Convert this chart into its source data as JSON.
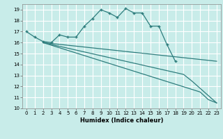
{
  "background_color": "#c8ece9",
  "grid_color": "#ffffff",
  "line_color": "#2e7d7d",
  "xlabel": "Humidex (Indice chaleur)",
  "ylim": [
    10,
    19.5
  ],
  "xlim": [
    -0.5,
    23.5
  ],
  "yticks": [
    10,
    11,
    12,
    13,
    14,
    15,
    16,
    17,
    18,
    19
  ],
  "xticks": [
    0,
    1,
    2,
    3,
    4,
    5,
    6,
    7,
    8,
    9,
    10,
    11,
    12,
    13,
    14,
    15,
    16,
    17,
    18,
    19,
    20,
    21,
    22,
    23
  ],
  "line1_x": [
    0,
    1,
    2,
    3,
    4,
    5,
    6,
    7,
    8,
    9,
    10,
    11,
    12,
    13,
    14,
    15,
    16,
    17,
    18
  ],
  "line1_y": [
    17.0,
    16.5,
    16.1,
    16.0,
    16.7,
    16.5,
    16.5,
    17.5,
    18.2,
    19.0,
    18.7,
    18.3,
    19.1,
    18.7,
    18.7,
    17.5,
    17.5,
    15.8,
    14.3
  ],
  "line2_x": [
    2,
    23
  ],
  "line2_y": [
    16.0,
    14.3
  ],
  "line3_x": [
    2,
    19,
    20,
    23
  ],
  "line3_y": [
    16.0,
    13.1,
    12.5,
    10.5
  ],
  "line4_x": [
    2,
    21,
    22,
    23
  ],
  "line4_y": [
    16.0,
    11.5,
    10.8,
    10.5
  ]
}
